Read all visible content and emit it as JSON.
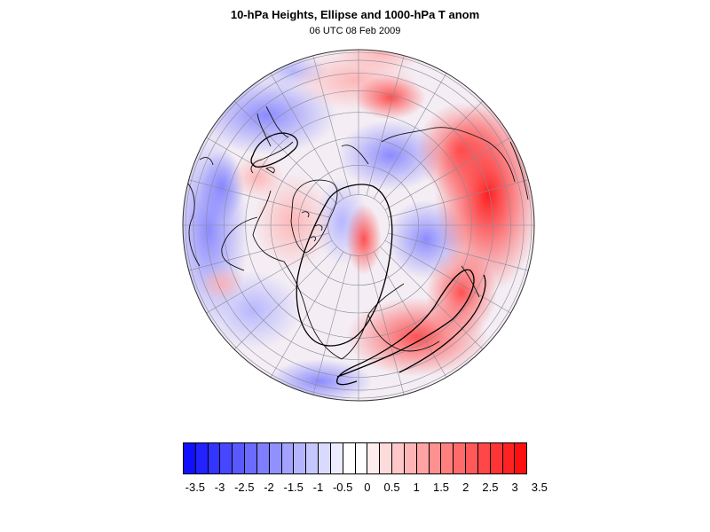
{
  "title": "10-hPa Heights, Ellipse and 1000-hPa T anom",
  "subtitle": "06 UTC 08 Feb 2009",
  "map": {
    "projection": "orthographic-north-polar",
    "features": [
      "coastlines",
      "lat-lon-grid",
      "10-hPa-height-contours",
      "ellipse",
      "temperature-anomaly-shading"
    ]
  },
  "colorbar": {
    "labels": [
      "-3.5",
      "-3",
      "-2.5",
      "-2",
      "-1.5",
      "-1",
      "-0.5",
      "0",
      "0.5",
      "1",
      "1.5",
      "2",
      "2.5",
      "3",
      "3.5"
    ],
    "colors": [
      "#1010ff",
      "#2222ff",
      "#3434ff",
      "#4747ff",
      "#5959ff",
      "#6b6bff",
      "#7e7eff",
      "#9090ff",
      "#a3a3ff",
      "#b5b5ff",
      "#c7c7ff",
      "#dadaff",
      "#ececff",
      "#ffffff",
      "#ffffff",
      "#ffecec",
      "#ffdada",
      "#ffc7c7",
      "#ffb5b5",
      "#ffa3a3",
      "#ff9090",
      "#ff7e7e",
      "#ff6b6b",
      "#ff5959",
      "#ff4747",
      "#ff3434",
      "#ff2222",
      "#ff1010"
    ],
    "units_shown": false
  }
}
